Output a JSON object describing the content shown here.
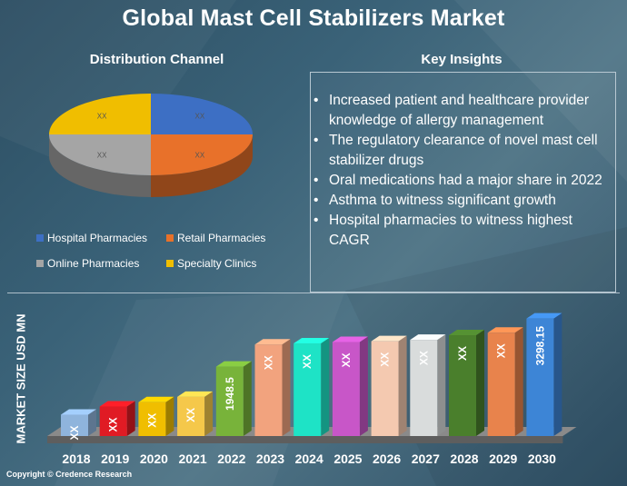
{
  "title": "Global Mast Cell Stabilizers Market",
  "distribution": {
    "title": "Distribution Channel",
    "legend": [
      {
        "label": "Hospital Pharmacies",
        "color": "#3d6fc4"
      },
      {
        "label": "Retail Pharmacies",
        "color": "#e8712a"
      },
      {
        "label": "Online Pharmacies",
        "color": "#a5a5a5"
      },
      {
        "label": "Specialty Clinics",
        "color": "#f0be00"
      }
    ]
  },
  "insights": {
    "title": "Key Insights",
    "items": [
      "Increased patient and healthcare provider knowledge of allergy management",
      "The regulatory clearance of novel mast cell stabilizer drugs",
      "Oral medications had a major share in 2022",
      "Asthma to witness significant growth",
      "Hospital pharmacies to witness highest CAGR"
    ]
  },
  "copyright": "Copyright © Credence Research",
  "chart_data": [
    {
      "type": "pie",
      "title": "Distribution Channel",
      "labels": [
        "Hospital Pharmacies",
        "Retail Pharmacies",
        "Online Pharmacies",
        "Specialty Clinics"
      ],
      "values": [
        25,
        25,
        25,
        25
      ],
      "data_labels": [
        "XX",
        "XX",
        "XX",
        "XX"
      ],
      "colors": [
        "#3d6fc4",
        "#e8712a",
        "#a5a5a5",
        "#f0be00"
      ],
      "legend_position": "bottom"
    },
    {
      "type": "bar",
      "title": "",
      "ylabel": "MARKET SIZE USD MN",
      "xlabel": "",
      "categories": [
        "2018",
        "2019",
        "2020",
        "2021",
        "2022",
        "2023",
        "2024",
        "2025",
        "2026",
        "2027",
        "2028",
        "2029",
        "2030"
      ],
      "values": [
        600,
        830,
        950,
        1100,
        1948.5,
        2570,
        2600,
        2640,
        2660,
        2700,
        2830,
        2900,
        3298.15
      ],
      "data_labels": [
        "XX",
        "XX",
        "XX",
        "XX",
        "1948.5",
        "XX",
        "XX",
        "XX",
        "XX",
        "XX",
        "XX",
        "XX",
        "3298.15"
      ],
      "colors": [
        "#8fb4dc",
        "#e01b24",
        "#f0be00",
        "#f5c84a",
        "#78b33a",
        "#f2a37e",
        "#1ee3c6",
        "#c856c8",
        "#f4c9b0",
        "#d9dcdc",
        "#4a7f2c",
        "#e8834c",
        "#3d85d6"
      ],
      "ylim": [
        0,
        3500
      ],
      "grid": false
    }
  ]
}
